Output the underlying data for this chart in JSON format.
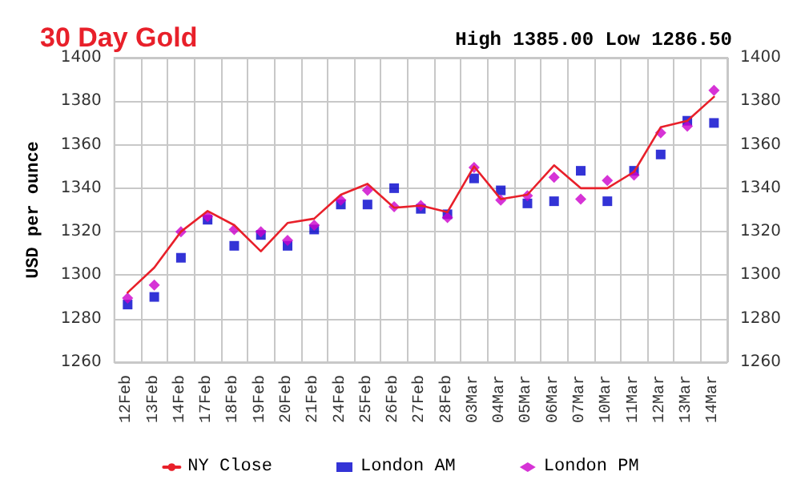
{
  "chart_data": {
    "type": "line",
    "title": "30 Day Gold",
    "subtitle": "High 1385.00 Low 1286.50",
    "ylabel": "USD per ounce",
    "categories": [
      "12Feb",
      "13Feb",
      "14Feb",
      "17Feb",
      "18Feb",
      "19Feb",
      "20Feb",
      "21Feb",
      "24Feb",
      "25Feb",
      "26Feb",
      "27Feb",
      "28Feb",
      "03Mar",
      "04Mar",
      "05Mar",
      "06Mar",
      "07Mar",
      "10Mar",
      "11Mar",
      "12Mar",
      "13Mar",
      "14Mar"
    ],
    "series": [
      {
        "name": "NY Close",
        "type": "line",
        "color": "#e8202a",
        "marker": "none",
        "values": [
          1292,
          1303.5,
          1320,
          1329.5,
          1323,
          1311,
          1324,
          1326,
          1337,
          1342,
          1331,
          1332,
          1329,
          1350,
          1335,
          1337,
          1350.5,
          1340,
          1340,
          1347.5,
          1368,
          1371,
          1382
        ]
      },
      {
        "name": "London AM",
        "type": "scatter",
        "color": "#0000cc",
        "marker": "square",
        "values": [
          1286.5,
          1290,
          1308,
          1325.5,
          1313.5,
          1318.5,
          1313.5,
          1321,
          1332.5,
          1332.5,
          1340,
          1330.5,
          1328,
          1344.5,
          1339,
          1333,
          1334,
          1348,
          1334,
          1348,
          1355.5,
          1371,
          1370
        ]
      },
      {
        "name": "London PM",
        "type": "scatter",
        "color": "#cc00cc",
        "marker": "diamond",
        "values": [
          1289.5,
          1295.5,
          1320,
          1327,
          1321,
          1320,
          1316,
          1323,
          1334.5,
          1339,
          1331.5,
          1332,
          1326.5,
          1349.5,
          1334.5,
          1336.5,
          1345,
          1335,
          1343.5,
          1346,
          1365.5,
          1368.5,
          1385
        ]
      }
    ],
    "ylim": [
      1260,
      1400
    ],
    "yticks": [
      1260,
      1280,
      1300,
      1320,
      1340,
      1360,
      1380,
      1400
    ],
    "y2lim": [
      1260,
      1400
    ],
    "y2ticks": [
      1260,
      1280,
      1300,
      1320,
      1340,
      1360,
      1380,
      1400
    ],
    "grid": true,
    "legend": "bottom"
  }
}
